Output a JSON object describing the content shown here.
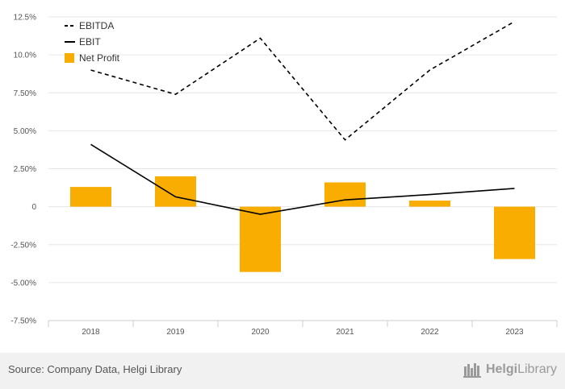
{
  "chart_data": {
    "type": "bar+line",
    "categories": [
      "2018",
      "2019",
      "2020",
      "2021",
      "2022",
      "2023"
    ],
    "y_ticks": [
      "12.5%",
      "10.0%",
      "7.50%",
      "5.00%",
      "2.50%",
      "0",
      "-2.50%",
      "-5.00%",
      "-7.50%"
    ],
    "ylim": [
      -7.5,
      12.5
    ],
    "grid": true,
    "legend_position": "top-left",
    "series": [
      {
        "name": "EBITDA",
        "kind": "line",
        "style": "dashed",
        "color": "#000000",
        "values": [
          9.0,
          7.4,
          11.1,
          4.4,
          9.0,
          12.2
        ]
      },
      {
        "name": "EBIT",
        "kind": "line",
        "style": "solid",
        "color": "#000000",
        "values": [
          4.1,
          0.65,
          -0.5,
          0.45,
          0.8,
          1.2
        ]
      },
      {
        "name": "Net Profit",
        "kind": "bar",
        "color": "#f9ad00",
        "values": [
          1.3,
          2.0,
          -4.3,
          1.6,
          0.4,
          -3.45
        ]
      }
    ]
  },
  "footer": {
    "source": "Source: Company Data, Helgi Library",
    "logo_part1": "Helgi",
    "logo_part2": "Library"
  }
}
